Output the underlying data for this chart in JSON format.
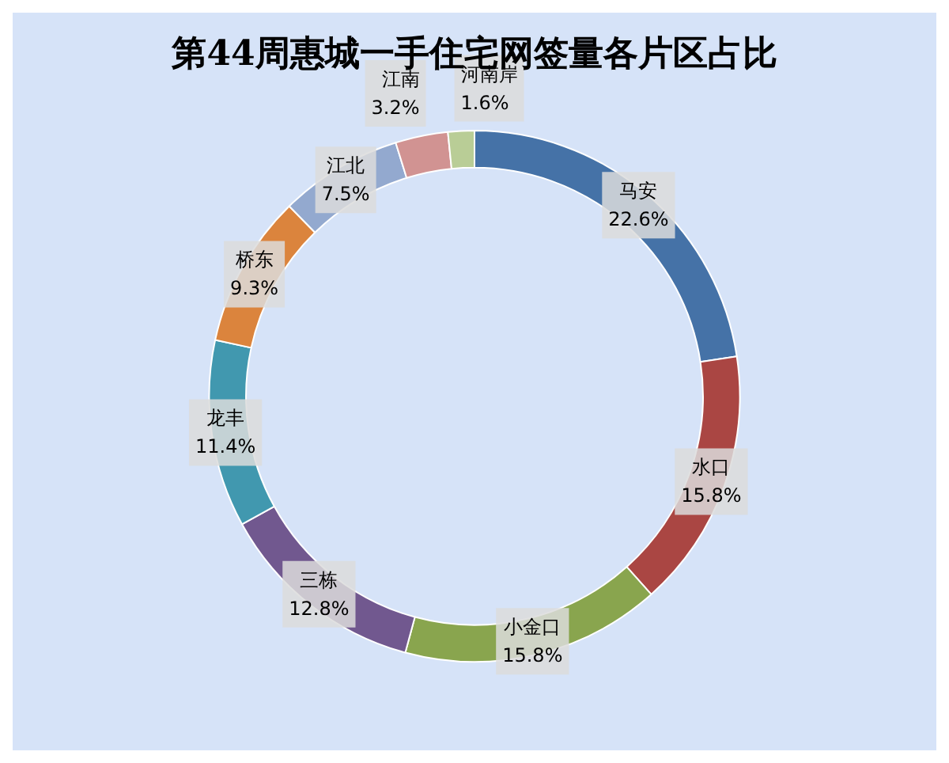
{
  "chart_data": {
    "type": "donut",
    "title": "第44周惠城一手住宅网签量各片区占比",
    "categories": [
      "马安",
      "水口",
      "小金口",
      "三栋",
      "龙丰",
      "桥东",
      "江北",
      "江南",
      "河南岸"
    ],
    "values": [
      22.6,
      15.8,
      15.8,
      12.8,
      11.4,
      9.3,
      7.5,
      3.2,
      1.6
    ],
    "colors": [
      "#4572a7",
      "#aa4643",
      "#89a54e",
      "#71588f",
      "#4198af",
      "#db843d",
      "#93a9cf",
      "#d19392",
      "#b9cd96"
    ],
    "value_labels": [
      "22.6%",
      "15.8%",
      "15.8%",
      "12.8%",
      "11.4%",
      "9.3%",
      "7.5%",
      "3.2%",
      "1.6%"
    ],
    "legend": false
  }
}
